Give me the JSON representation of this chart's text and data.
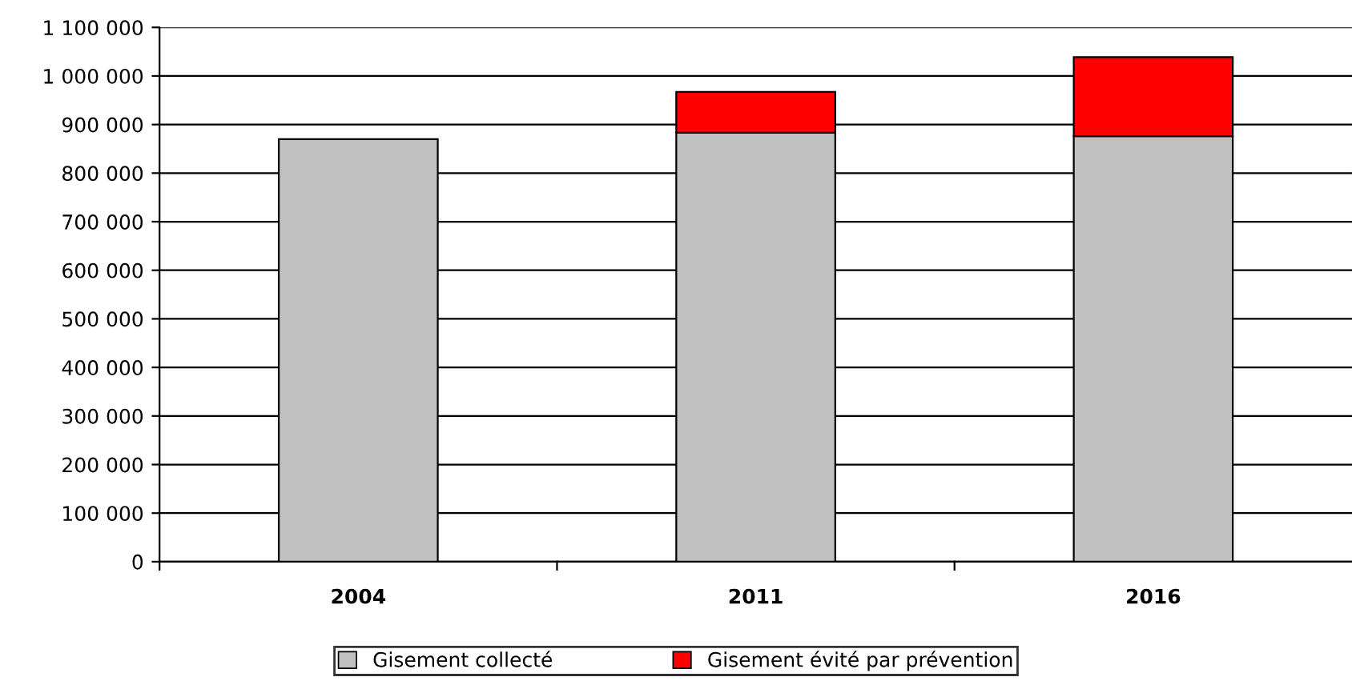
{
  "chart_data": {
    "type": "bar",
    "stacked": true,
    "categories": [
      "2004",
      "2011",
      "2016"
    ],
    "series": [
      {
        "name": "Gisement collecté",
        "color": "#c0c0c0",
        "values": [
          870000,
          883000,
          876000
        ]
      },
      {
        "name": "Gisement évité par prévention",
        "color": "#ff0000",
        "values": [
          null,
          84000,
          163000
        ]
      }
    ],
    "ylim": [
      0,
      1100000
    ],
    "yticks": [
      0,
      {
        "value": 100000,
        "label": "100 000"
      },
      {
        "value": 200000,
        "label": "200 000"
      },
      {
        "value": 300000,
        "label": "300 000"
      },
      {
        "value": 400000,
        "label": "400 000"
      },
      {
        "value": 500000,
        "label": "500 000"
      },
      {
        "value": 600000,
        "label": "600 000"
      },
      {
        "value": 700000,
        "label": "700 000"
      },
      {
        "value": 800000,
        "label": "800 000"
      },
      {
        "value": 900000,
        "label": "900 000"
      },
      {
        "value": 1000000,
        "label": "1 000 000"
      },
      {
        "value": 1100000,
        "label": "1 100 000"
      }
    ],
    "grid": "y",
    "legend": "bottom"
  }
}
